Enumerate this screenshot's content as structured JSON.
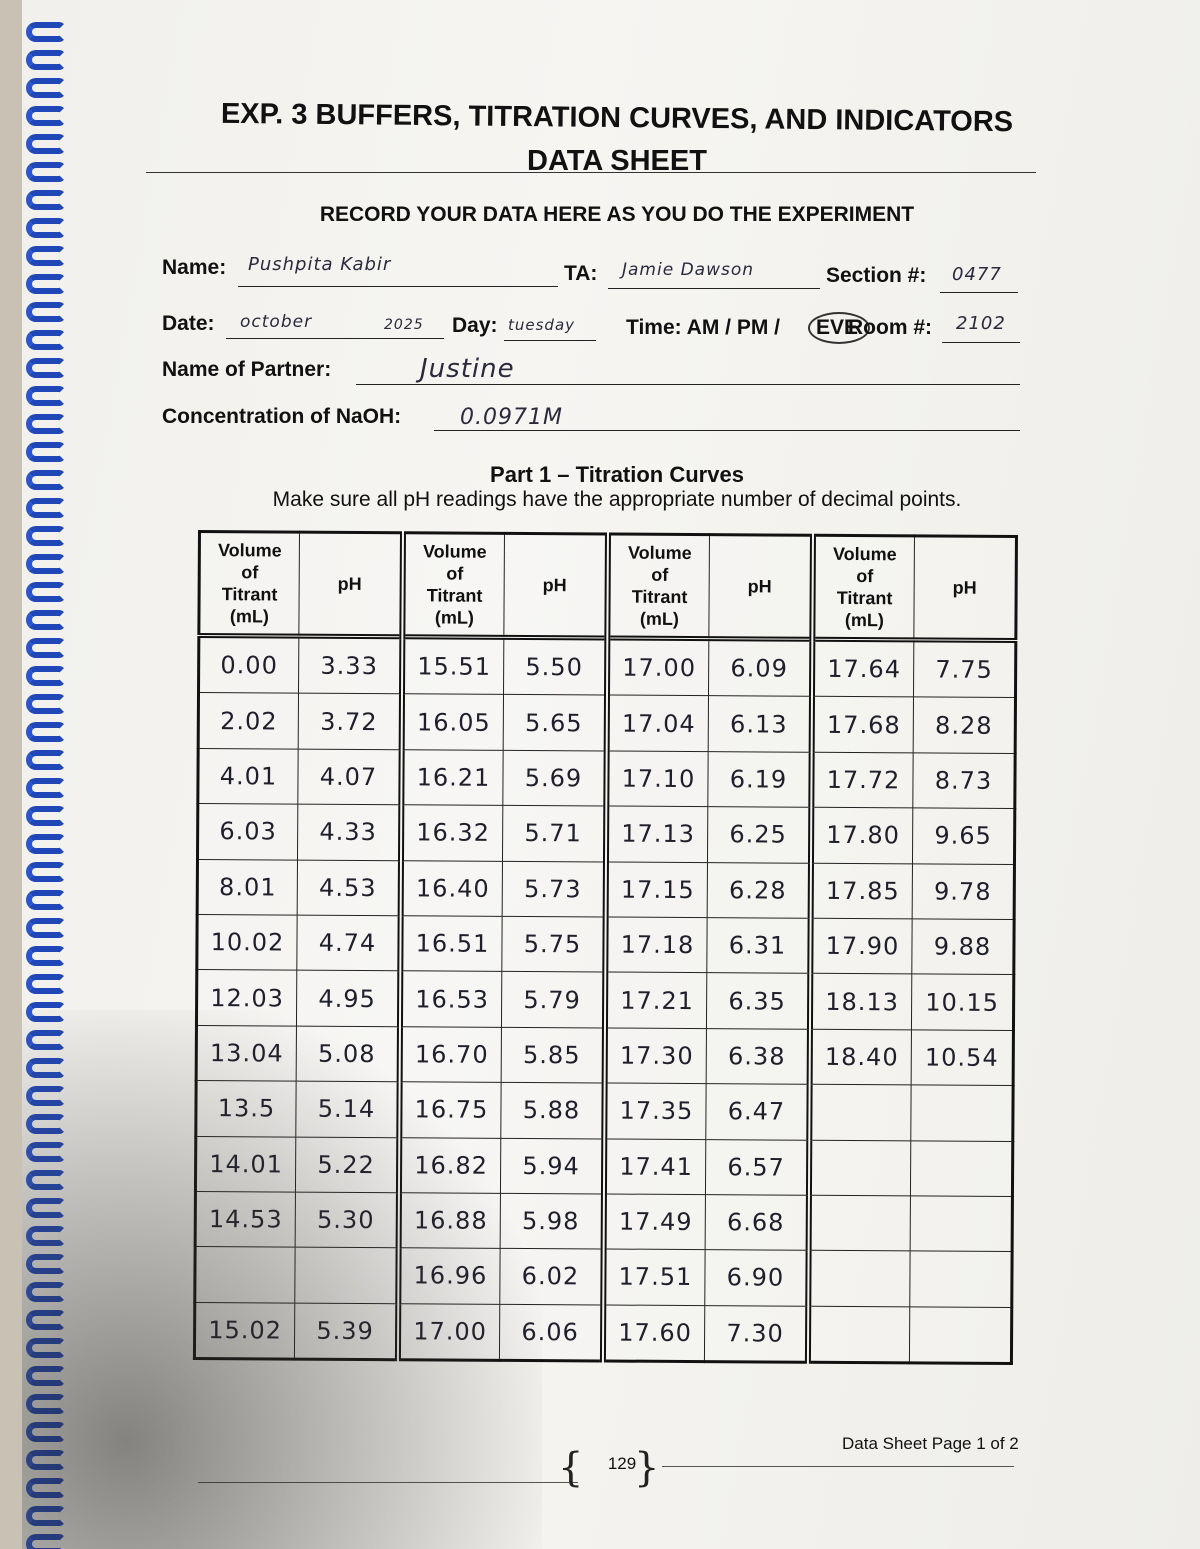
{
  "header": {
    "title": "EXP. 3 BUFFERS, TITRATION CURVES, AND INDICATORS",
    "subtitle": "DATA SHEET",
    "instruction": "RECORD YOUR DATA HERE AS YOU DO THE EXPERIMENT"
  },
  "form": {
    "name_label": "Name:",
    "name_value": "Pushpita Kabir",
    "ta_label": "TA:",
    "ta_value": "Jamie Dawson",
    "section_label": "Section #:",
    "section_value": "0477",
    "date_label": "Date:",
    "date_value": "october",
    "date_year": "2025",
    "day_label": "Day:",
    "day_value": "tuesday",
    "time_label": "Time: AM / PM /",
    "time_selected": "EVE",
    "room_label": "Room #:",
    "room_value": "2102",
    "partner_label": "Name of Partner:",
    "partner_value": "Justine",
    "naoh_label": "Concentration of NaOH:",
    "naoh_value": "0.0971M"
  },
  "part1": {
    "title": "Part 1 – Titration Curves",
    "instruction": "Make sure all pH readings have the appropriate number of decimal points."
  },
  "table": {
    "headers": {
      "volume": [
        "Volume",
        "of",
        "Titrant",
        "(mL)"
      ],
      "ph": "pH"
    },
    "rows": [
      [
        "0.00",
        "3.33",
        "15.51",
        "5.50",
        "17.00",
        "6.09",
        "17.64",
        "7.75"
      ],
      [
        "2.02",
        "3.72",
        "16.05",
        "5.65",
        "17.04",
        "6.13",
        "17.68",
        "8.28"
      ],
      [
        "4.01",
        "4.07",
        "16.21",
        "5.69",
        "17.10",
        "6.19",
        "17.72",
        "8.73"
      ],
      [
        "6.03",
        "4.33",
        "16.32",
        "5.71",
        "17.13",
        "6.25",
        "17.80",
        "9.65"
      ],
      [
        "8.01",
        "4.53",
        "16.40",
        "5.73",
        "17.15",
        "6.28",
        "17.85",
        "9.78"
      ],
      [
        "10.02",
        "4.74",
        "16.51",
        "5.75",
        "17.18",
        "6.31",
        "17.90",
        "9.88"
      ],
      [
        "12.03",
        "4.95",
        "16.53",
        "5.79",
        "17.21",
        "6.35",
        "18.13",
        "10.15"
      ],
      [
        "13.04",
        "5.08",
        "16.70",
        "5.85",
        "17.30",
        "6.38",
        "18.40",
        "10.54"
      ],
      [
        "13.5",
        "5.14",
        "16.75",
        "5.88",
        "17.35",
        "6.47",
        "",
        ""
      ],
      [
        "14.01",
        "5.22",
        "16.82",
        "5.94",
        "17.41",
        "6.57",
        "",
        ""
      ],
      [
        "14.53",
        "5.30",
        "16.88",
        "5.98",
        "17.49",
        "6.68",
        "",
        ""
      ],
      [
        "",
        "",
        "16.96",
        "6.02",
        "17.51",
        "6.90",
        "",
        ""
      ],
      [
        "15.02",
        "5.39",
        "17.00",
        "6.06",
        "17.60",
        "7.30",
        "",
        ""
      ]
    ]
  },
  "footer": {
    "page_label": "Data Sheet Page 1 of 2",
    "page_number": "129"
  }
}
